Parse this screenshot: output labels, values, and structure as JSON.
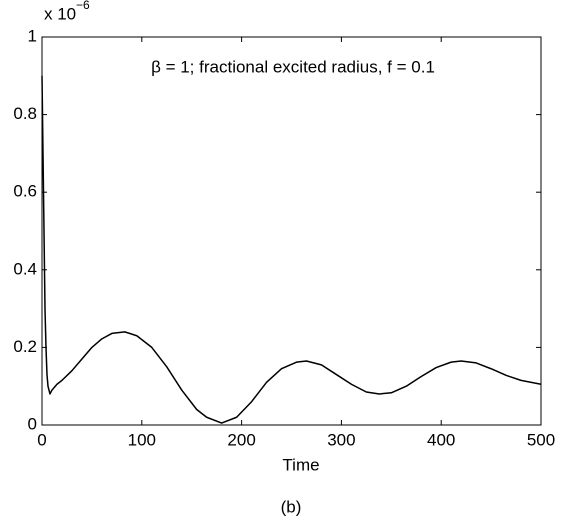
{
  "chart_data": {
    "type": "line",
    "annotation": "β = 1; fractional excited radius, f = 0.1",
    "x_label": "Time",
    "caption": "(b)",
    "y_multiplier": {
      "base": "x 10",
      "exponent": "−6"
    },
    "x": [
      0,
      1,
      2,
      3,
      4,
      5,
      6,
      8,
      10,
      15,
      20,
      30,
      40,
      50,
      60,
      70,
      83,
      95,
      110,
      125,
      140,
      155,
      165,
      180,
      195,
      210,
      225,
      240,
      255,
      265,
      280,
      295,
      310,
      325,
      338,
      350,
      365,
      380,
      395,
      410,
      420,
      435,
      450,
      465,
      480,
      500
    ],
    "values": [
      0.9,
      0.7,
      0.5,
      0.3,
      0.2,
      0.13,
      0.1,
      0.08,
      0.09,
      0.105,
      0.115,
      0.14,
      0.17,
      0.2,
      0.222,
      0.236,
      0.24,
      0.23,
      0.2,
      0.15,
      0.09,
      0.04,
      0.02,
      0.005,
      0.02,
      0.06,
      0.11,
      0.145,
      0.162,
      0.165,
      0.155,
      0.13,
      0.105,
      0.085,
      0.08,
      0.083,
      0.1,
      0.125,
      0.148,
      0.162,
      0.165,
      0.16,
      0.145,
      0.128,
      0.115,
      0.105
    ],
    "color": "#000000",
    "xlim": [
      0,
      500
    ],
    "xticks": [
      0,
      100,
      200,
      300,
      400,
      500
    ],
    "ylim": [
      0,
      1
    ],
    "yticks": [
      0,
      0.2,
      0.4,
      0.6,
      0.8,
      1
    ],
    "grid": false
  }
}
